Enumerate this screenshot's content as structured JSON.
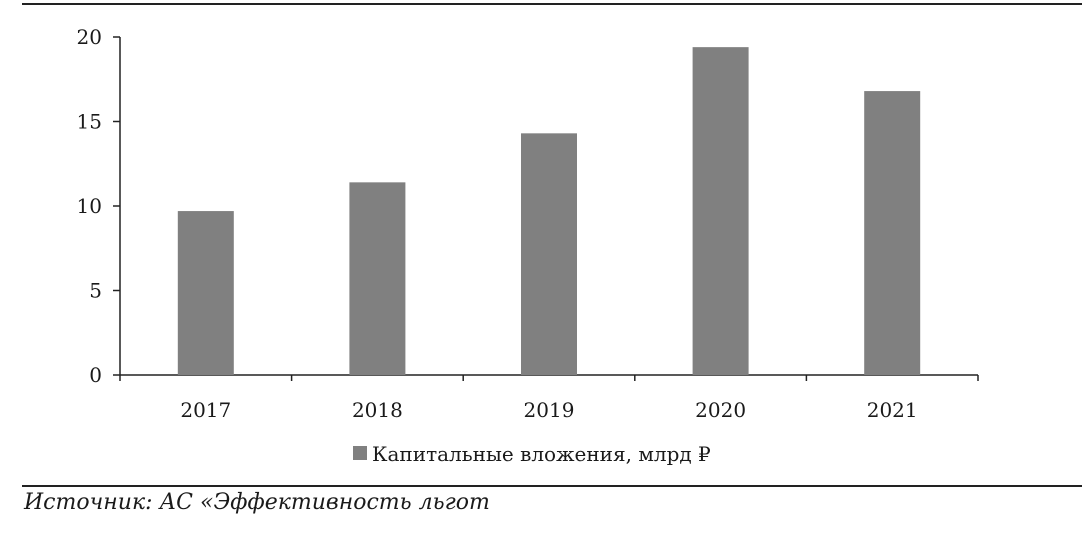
{
  "chart_data": {
    "type": "bar",
    "categories": [
      "2017",
      "2018",
      "2019",
      "2020",
      "2021"
    ],
    "series": [
      {
        "name": "Капитальные вложения, млрд ₽",
        "values": [
          9.7,
          11.4,
          14.3,
          19.4,
          16.8
        ],
        "color": "#808080"
      }
    ],
    "ylim": [
      0,
      20
    ],
    "yticks": [
      0,
      5,
      10,
      15,
      20
    ],
    "grid": false,
    "legend_position": "bottom-center"
  },
  "source": "Источник: АС «Эффективность льгот"
}
